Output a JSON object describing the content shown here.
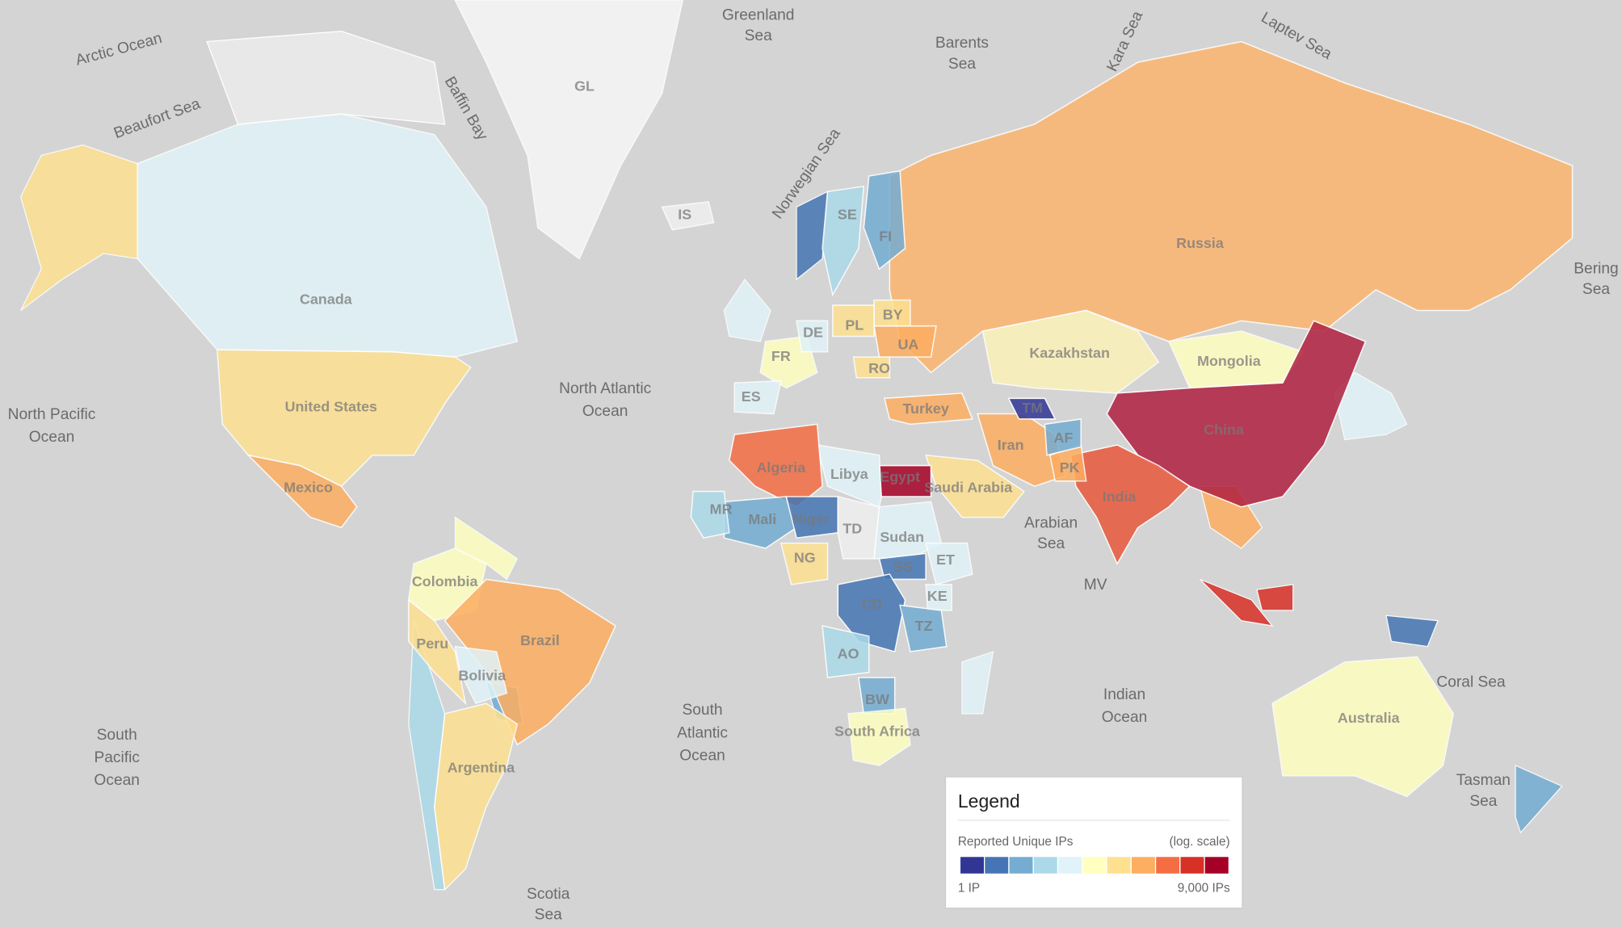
{
  "map": {
    "seas": [
      {
        "lines": [
          "Arctic Ocean"
        ]
      },
      {
        "lines": [
          "Beaufort Sea"
        ]
      },
      {
        "lines": [
          "Baffin Bay"
        ]
      },
      {
        "lines": [
          "Greenland",
          "Sea"
        ]
      },
      {
        "lines": [
          "Barents",
          "Sea"
        ]
      },
      {
        "lines": [
          "Kara Sea"
        ]
      },
      {
        "lines": [
          "Laptev Sea"
        ]
      },
      {
        "lines": [
          "Norwegian Sea"
        ]
      },
      {
        "lines": [
          "North Atlantic",
          "Ocean"
        ]
      },
      {
        "lines": [
          "North Pacific",
          "Ocean"
        ]
      },
      {
        "lines": [
          "Bering",
          "Sea"
        ]
      },
      {
        "lines": [
          "South",
          "Pacific",
          "Ocean"
        ]
      },
      {
        "lines": [
          "South",
          "Atlantic",
          "Ocean"
        ]
      },
      {
        "lines": [
          "Indian",
          "Ocean"
        ]
      },
      {
        "lines": [
          "Arabian",
          "Sea"
        ]
      },
      {
        "lines": [
          "Coral Sea"
        ]
      },
      {
        "lines": [
          "Tasman",
          "Sea"
        ]
      },
      {
        "lines": [
          "Scotia",
          "Sea"
        ]
      },
      {
        "lines": [
          "MV"
        ]
      }
    ],
    "countries": [
      {
        "label": "Canada",
        "color": "#e0f3f8"
      },
      {
        "label": "United States",
        "color": "#fee090"
      },
      {
        "label": "Mexico",
        "color": "#fdae61"
      },
      {
        "label": "GL",
        "color": "#f7f7f7"
      },
      {
        "label": "Colombia",
        "color": "#ffffbf"
      },
      {
        "label": "Brazil",
        "color": "#fdae61"
      },
      {
        "label": "Peru",
        "color": "#fee090"
      },
      {
        "label": "Bolivia",
        "color": "#e0f3f8"
      },
      {
        "label": "Argentina",
        "color": "#fee090"
      },
      {
        "label": "Russia",
        "color": "#fdb56f"
      },
      {
        "label": "Kazakhstan",
        "color": "#fdf2b8"
      },
      {
        "label": "Mongolia",
        "color": "#ffffbf"
      },
      {
        "label": "China",
        "color": "#b0203f"
      },
      {
        "label": "India",
        "color": "#e8583c"
      },
      {
        "label": "Iran",
        "color": "#fdae61"
      },
      {
        "label": "Turkey",
        "color": "#fdae61"
      },
      {
        "label": "Saudi Arabia",
        "color": "#fee090"
      },
      {
        "label": "Egypt",
        "color": "#a50026"
      },
      {
        "label": "Libya",
        "color": "#e0f3f8"
      },
      {
        "label": "Algeria",
        "color": "#f46d43"
      },
      {
        "label": "Mali",
        "color": "#74add1"
      },
      {
        "label": "MR",
        "color": "#abd9e9"
      },
      {
        "label": "Niger",
        "color": "#4575b4"
      },
      {
        "label": "TD",
        "color": "#f0f0f0"
      },
      {
        "label": "Sudan",
        "color": "#e0f3f8"
      },
      {
        "label": "NG",
        "color": "#fee090"
      },
      {
        "label": "SS",
        "color": "#4575b4"
      },
      {
        "label": "ET",
        "color": "#e0f3f8"
      },
      {
        "label": "CD",
        "color": "#4575b4"
      },
      {
        "label": "KE",
        "color": "#e0f3f8"
      },
      {
        "label": "TZ",
        "color": "#74add1"
      },
      {
        "label": "AO",
        "color": "#abd9e9"
      },
      {
        "label": "BW",
        "color": "#74add1"
      },
      {
        "label": "South Africa",
        "color": "#ffffbf"
      },
      {
        "label": "Australia",
        "color": "#ffffbf"
      },
      {
        "label": "FI",
        "color": "#74add1"
      },
      {
        "label": "SE",
        "color": "#abd9e9"
      },
      {
        "label": "FR",
        "color": "#ffffbf"
      },
      {
        "label": "ES",
        "color": "#e0f3f8"
      },
      {
        "label": "DE",
        "color": "#e0f3f8"
      },
      {
        "label": "PL",
        "color": "#fee090"
      },
      {
        "label": "UA",
        "color": "#fdae61"
      },
      {
        "label": "BY",
        "color": "#fee090"
      },
      {
        "label": "RO",
        "color": "#fee090"
      },
      {
        "label": "PK",
        "color": "#fdae61"
      },
      {
        "label": "AF",
        "color": "#74add1"
      },
      {
        "label": "TM",
        "color": "#313695"
      },
      {
        "label": "IS",
        "color": "#f0f0f0"
      }
    ]
  },
  "legend": {
    "title": "Legend",
    "metric": "Reported Unique IPs",
    "scale_note": "(log. scale)",
    "colors": [
      "#313695",
      "#4575b4",
      "#74add1",
      "#abd9e9",
      "#e0f3f8",
      "#ffffbf",
      "#fee090",
      "#fdae61",
      "#f46d43",
      "#d73027",
      "#a50026"
    ],
    "min_label": "1 IP",
    "max_label": "9,000 IPs"
  }
}
